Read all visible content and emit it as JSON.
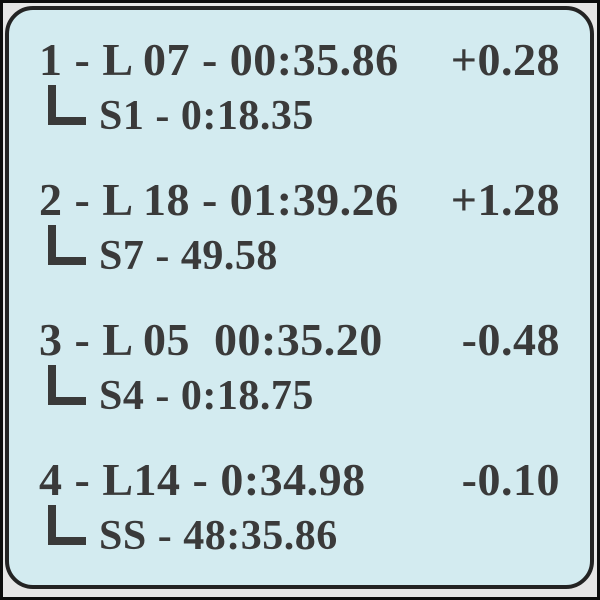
{
  "panel": {
    "type": "lap-timing-display",
    "colors": {
      "panel_bg": "#d3ebf0",
      "panel_border": "#232323",
      "text": "#3a3a3a",
      "outer_frame": "#0d0d0d",
      "frame_gap": "#e6e6e6"
    },
    "entries": [
      {
        "main": "1 - L 07 - 00:35.86",
        "delta": "+0.28",
        "sub": "S1 - 0:18.35"
      },
      {
        "main": "2 - L 18 - 01:39.26",
        "delta": "+1.28",
        "sub": "S7 - 49.58"
      },
      {
        "main": "3 - L 05  00:35.20",
        "delta": "-0.48",
        "sub": "S4 - 0:18.75"
      },
      {
        "main": "4 - L14 - 0:34.98",
        "delta": "-0.10",
        "sub": "SS - 48:35.86"
      }
    ]
  }
}
